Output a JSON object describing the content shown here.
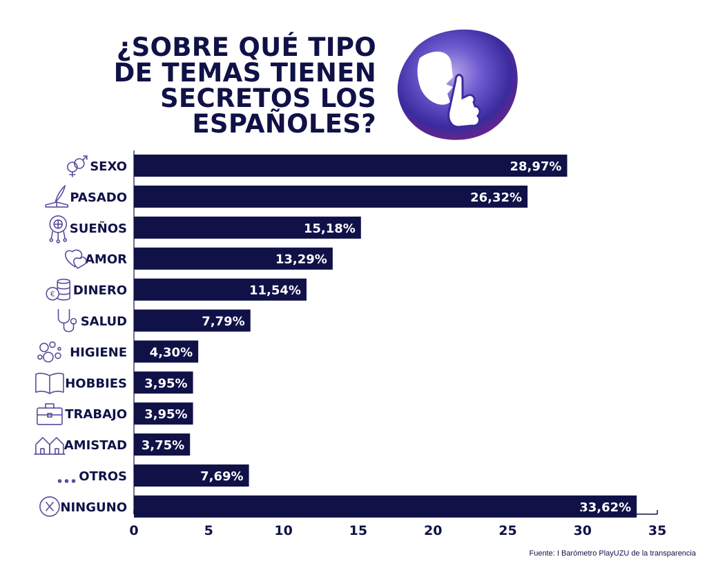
{
  "title": "¿SOBRE QUÉ TIPO DE TEMAS TIENEN SECRETOS LOS ESPAÑOLES?",
  "source": "Fuente: I Barómetro PlayUZU de la transparencia",
  "colors": {
    "bar": "#0f1147",
    "icon": "#5a4b9c",
    "text": "#0f1147",
    "label_text": "#ffffff"
  },
  "chart_data": {
    "type": "bar",
    "orientation": "horizontal",
    "categories": [
      "SEXO",
      "PASADO",
      "SUEÑOS",
      "AMOR",
      "DINERO",
      "SALUD",
      "HIGIENE",
      "HOBBIES",
      "TRABAJO",
      "AMISTAD",
      "OTROS",
      "NINGUNO"
    ],
    "values": [
      28.97,
      26.32,
      15.18,
      13.29,
      11.54,
      7.79,
      4.3,
      3.95,
      3.95,
      3.75,
      7.69,
      33.62
    ],
    "value_labels": [
      "28,97%",
      "26,32%",
      "15,18%",
      "13,29%",
      "11,54%",
      "7,79%",
      "4,30%",
      "3,95%",
      "3,95%",
      "3,75%",
      "7,69%",
      "33,62%"
    ],
    "icons": [
      "gender-symbols-icon",
      "quill-book-icon",
      "dreamcatcher-icon",
      "hearts-icon",
      "coins-icon",
      "stethoscope-icon",
      "bubbles-icon",
      "book-icon",
      "briefcase-icon",
      "houses-icon",
      "dots-icon",
      "x-circle-icon"
    ],
    "xlim": [
      0,
      35
    ],
    "xticks": [
      0,
      5,
      10,
      15,
      20,
      25,
      30,
      35
    ],
    "grid": false
  }
}
